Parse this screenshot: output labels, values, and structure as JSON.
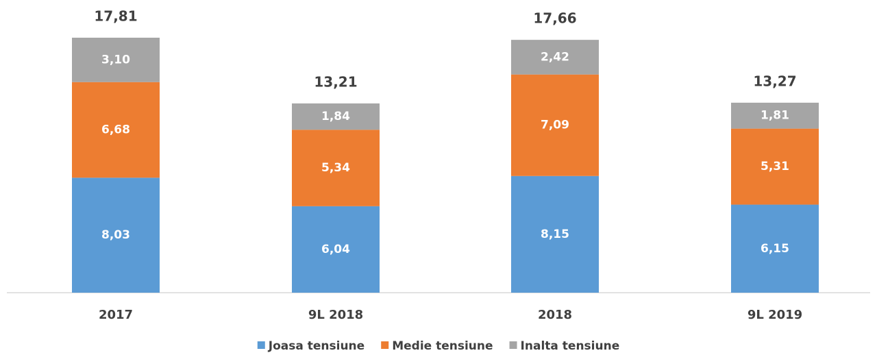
{
  "chart_data": {
    "type": "stacked_bar",
    "categories": [
      "2017",
      "9L 2018",
      "2018",
      "9L 2019"
    ],
    "series": [
      {
        "name": "Joasa tensiune",
        "color": "#5b9bd5",
        "values": [
          8.03,
          6.04,
          8.15,
          6.15
        ],
        "value_labels": [
          "8,03",
          "6,04",
          "8,15",
          "6,15"
        ]
      },
      {
        "name": "Medie tensiune",
        "color": "#ed7d31",
        "values": [
          6.68,
          5.34,
          7.09,
          5.31
        ],
        "value_labels": [
          "6,68",
          "5,34",
          "7,09",
          "5,31"
        ]
      },
      {
        "name": "Inalta tensiune",
        "color": "#a5a5a5",
        "values": [
          3.1,
          1.84,
          2.42,
          1.81
        ],
        "value_labels": [
          "3,10",
          "1,84",
          "2,42",
          "1,81"
        ]
      }
    ],
    "totals": [
      17.81,
      13.21,
      17.66,
      13.27
    ],
    "total_labels": [
      "17,81",
      "13,21",
      "17,66",
      "13,27"
    ],
    "legend": "bottom"
  }
}
